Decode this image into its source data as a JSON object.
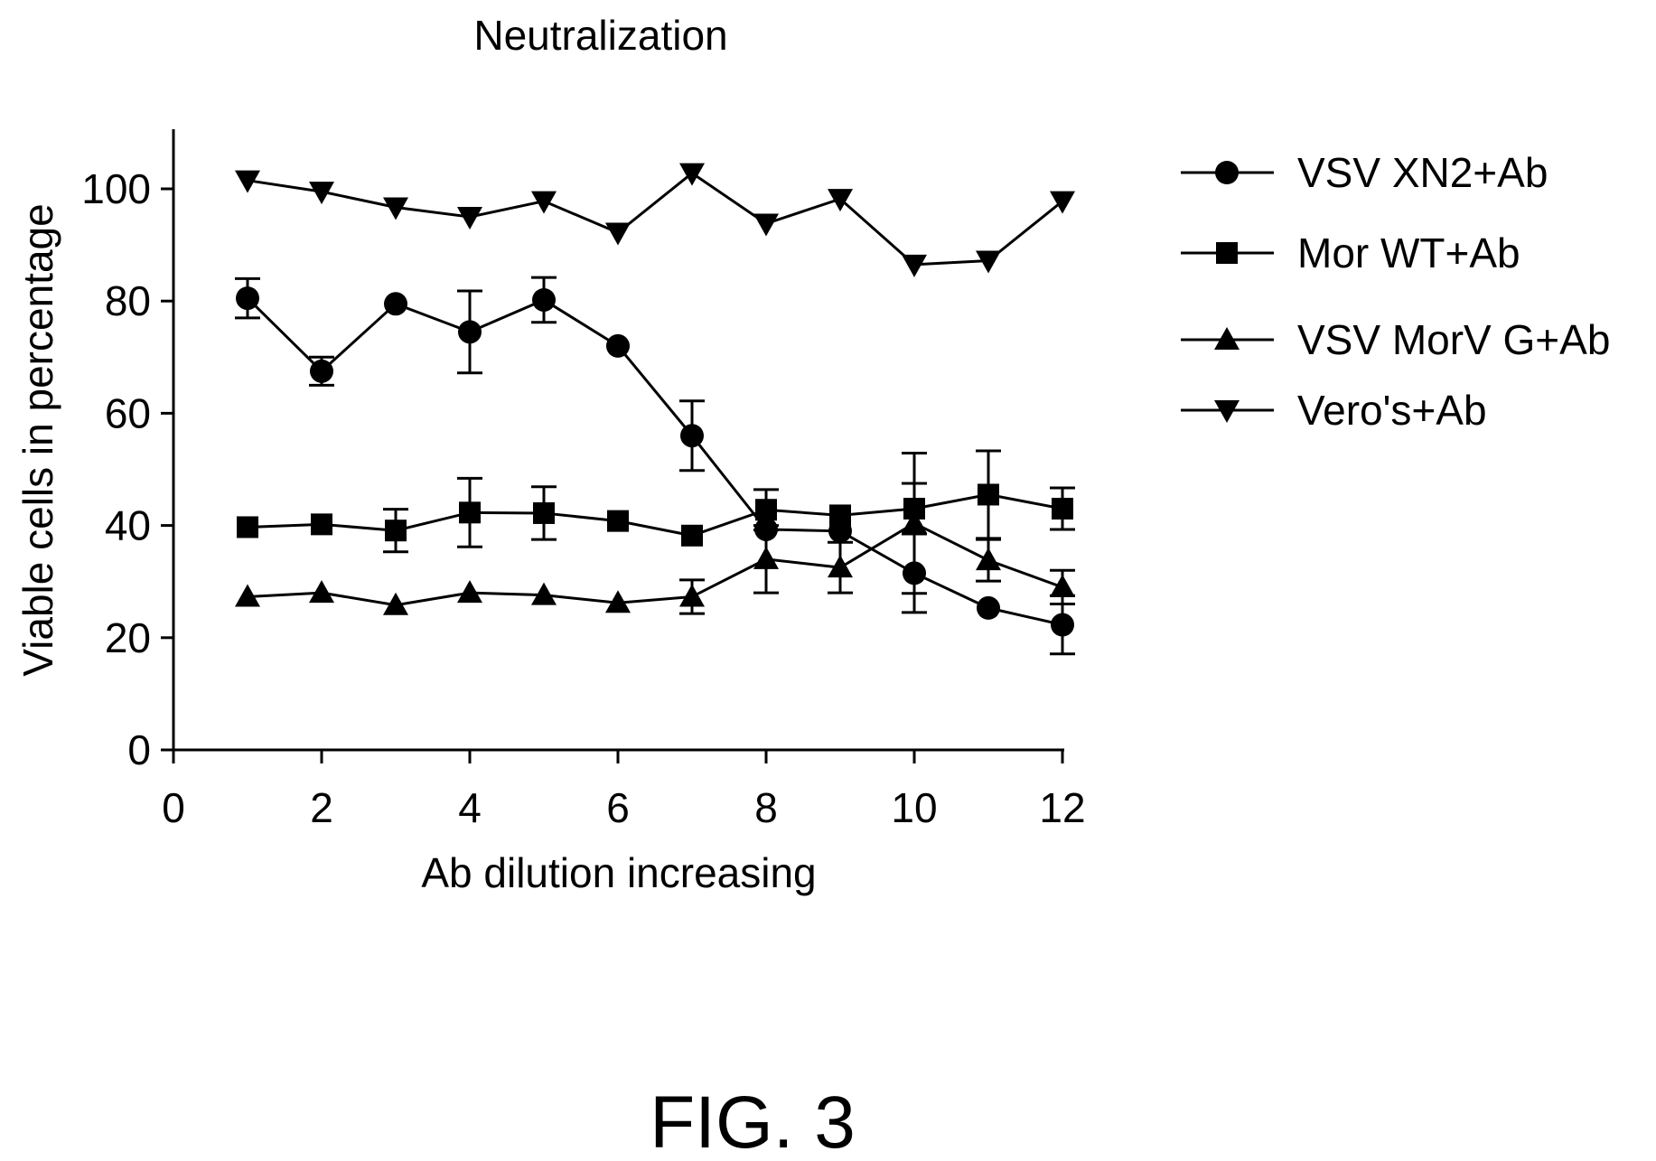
{
  "figure": {
    "caption": "FIG. 3"
  },
  "chart_data": {
    "type": "line",
    "title": "Neutralization",
    "xlabel": "Ab dilution increasing",
    "ylabel": "Viable cells in percentage",
    "xlim": [
      0,
      12
    ],
    "ylim": [
      0,
      110
    ],
    "xticks": [
      0,
      2,
      4,
      6,
      8,
      10,
      12
    ],
    "yticks": [
      0,
      20,
      40,
      60,
      80,
      100
    ],
    "grid": false,
    "legend_position": "right",
    "x": [
      1,
      2,
      3,
      4,
      5,
      6,
      7,
      8,
      9,
      10,
      11,
      12
    ],
    "series": [
      {
        "name": "VSV XN2+Ab",
        "marker": "circle",
        "color": "#000000",
        "values": [
          80.5,
          67.5,
          79.5,
          74.5,
          80.2,
          72,
          56,
          39.3,
          39,
          31.5,
          25.3,
          22.3
        ],
        "errors": [
          3.5,
          2.5,
          0,
          7.3,
          4,
          0,
          6.2,
          0,
          0,
          7,
          0,
          5.2
        ]
      },
      {
        "name": "Mor WT+Ab",
        "marker": "square",
        "color": "#000000",
        "values": [
          39.7,
          40.2,
          39.1,
          42.3,
          42.2,
          40.8,
          38.2,
          42.8,
          41.8,
          43,
          45.5,
          43
        ],
        "errors": [
          0,
          0,
          3.8,
          6.1,
          4.7,
          0,
          0,
          3.6,
          0,
          4.5,
          7.8,
          3.7
        ]
      },
      {
        "name": "VSV MorV G+Ab",
        "marker": "triangle-up",
        "color": "#000000",
        "values": [
          27.3,
          28,
          25.8,
          28,
          27.6,
          26.2,
          27.3,
          34,
          32.5,
          40.4,
          33.8,
          29
        ],
        "errors": [
          0,
          0,
          0,
          0,
          0,
          0,
          3,
          6,
          4.5,
          12.5,
          3.7,
          3
        ]
      },
      {
        "name": "Vero's+Ab",
        "marker": "triangle-down",
        "color": "#000000",
        "values": [
          101.5,
          99.5,
          96.7,
          95,
          97.8,
          92.2,
          102.8,
          93.8,
          98.2,
          86.5,
          87.2,
          97.8
        ],
        "errors": [
          0,
          0,
          0,
          0,
          0,
          0,
          0,
          0,
          0,
          0,
          0,
          0
        ]
      }
    ]
  }
}
